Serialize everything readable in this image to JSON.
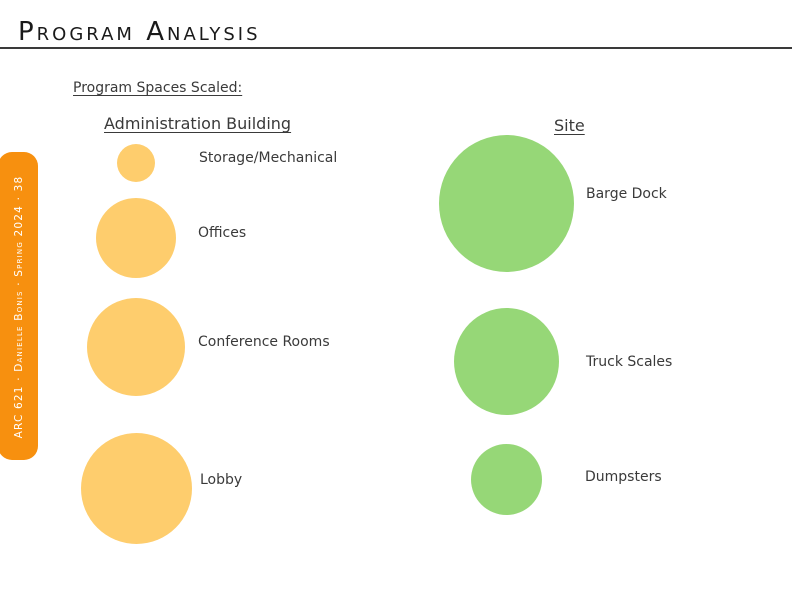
{
  "page": {
    "title": "Program Analysis",
    "side_tab": "ARC 621 · Danielle Bonis · Spring 2024 · 38",
    "subtitle": "Program Spaces Scaled:"
  },
  "colors": {
    "admin_circle": "#fecd6d",
    "site_circle": "#96d777",
    "side_tab": "#f7900f"
  },
  "administration": {
    "heading": "Administration Building",
    "spaces": [
      {
        "label": "Storage/Mechanical"
      },
      {
        "label": "Offices"
      },
      {
        "label": "Conference Rooms"
      },
      {
        "label": "Lobby"
      }
    ]
  },
  "site": {
    "heading": "Site",
    "spaces": [
      {
        "label": "Barge Dock"
      },
      {
        "label": "Truck Scales"
      },
      {
        "label": "Dumpsters"
      }
    ]
  }
}
